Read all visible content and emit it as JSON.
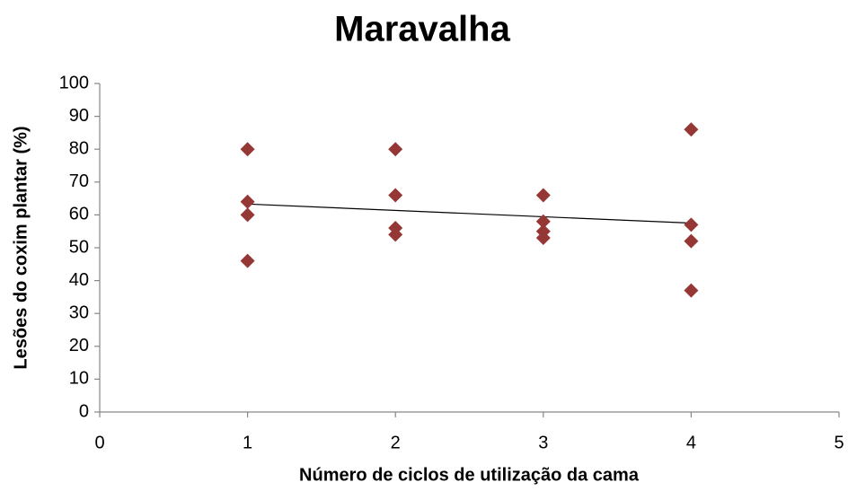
{
  "chart_data": {
    "type": "scatter",
    "title": "Maravalha",
    "xlabel": "Número de ciclos de utilização da cama",
    "ylabel": "Lesões do coxim plantar (%)",
    "series": [
      {
        "color": "#953735",
        "x": [
          1,
          1,
          1,
          1,
          2,
          2,
          2,
          2,
          3,
          3,
          3,
          3,
          4,
          4,
          4,
          4
        ],
        "values": [
          80,
          64,
          60,
          46,
          80,
          66,
          56,
          54,
          66,
          58,
          55,
          53,
          86,
          57,
          52,
          37
        ]
      }
    ],
    "trendline": {
      "color": "#000000",
      "x": [
        1,
        4
      ],
      "values": [
        63.3,
        57.5
      ]
    },
    "xlim": [
      0,
      5
    ],
    "xticks": [
      0,
      1,
      2,
      3,
      4,
      5
    ],
    "ylim": [
      0,
      100
    ],
    "yticks": [
      0,
      10,
      20,
      30,
      40,
      50,
      60,
      70,
      80,
      90,
      100
    ],
    "grid": false
  }
}
